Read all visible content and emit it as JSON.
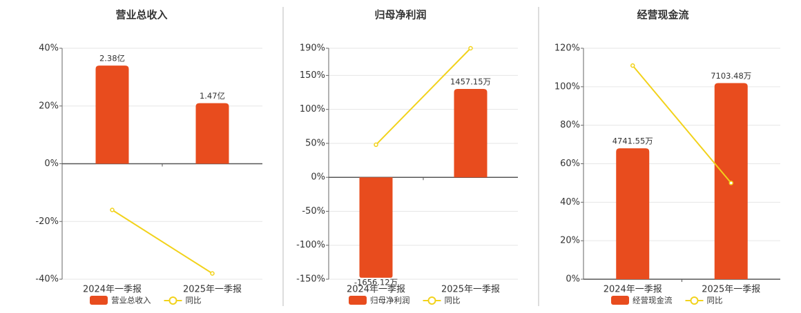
{
  "chart_data": [
    {
      "type": "bar",
      "title": "营业总收入",
      "categories": [
        "2024年一季报",
        "2025年一季报"
      ],
      "series": [
        {
          "name": "营业总收入",
          "type": "bar",
          "axis": "y2",
          "color": "#e84c1e",
          "values": [
            2.38,
            1.47
          ],
          "value_labels": [
            "2.38亿",
            "1.47亿"
          ]
        },
        {
          "name": "同比",
          "type": "line",
          "color": "#f2d21b",
          "values": [
            -16,
            -38
          ]
        }
      ],
      "ylim": [
        -40,
        40
      ],
      "y2lim": [
        -2.8,
        2.8
      ],
      "yticks": [
        {
          "value": 40,
          "label": "40%"
        },
        {
          "value": 20,
          "label": "20%"
        },
        {
          "value": 0,
          "label": "0%"
        },
        {
          "value": -20,
          "label": "-20%"
        },
        {
          "value": -40,
          "label": "-40%"
        }
      ],
      "grid": true
    },
    {
      "type": "bar",
      "title": "归母净利润",
      "categories": [
        "2024年一季报",
        "2025年一季报"
      ],
      "series": [
        {
          "name": "归母净利润",
          "type": "bar",
          "axis": "y2",
          "color": "#e84c1e",
          "values": [
            -1656.12,
            1457.15
          ],
          "value_labels": [
            "-1656.12万",
            "1457.15万"
          ]
        },
        {
          "name": "同比",
          "type": "line",
          "color": "#f2d21b",
          "values": [
            48,
            190
          ]
        }
      ],
      "ylim": [
        -150,
        190
      ],
      "y2lim": [
        -1680,
        2128
      ],
      "yticks": [
        {
          "value": 190,
          "label": "190%"
        },
        {
          "value": 150,
          "label": "150%"
        },
        {
          "value": 100,
          "label": "100%"
        },
        {
          "value": 50,
          "label": "50%"
        },
        {
          "value": 0,
          "label": "0%"
        },
        {
          "value": -50,
          "label": "-50%"
        },
        {
          "value": -100,
          "label": "-100%"
        },
        {
          "value": -150,
          "label": "-150%"
        }
      ],
      "grid": true
    },
    {
      "type": "bar",
      "title": "经营现金流",
      "categories": [
        "2024年一季报",
        "2025年一季报"
      ],
      "series": [
        {
          "name": "经营现金流",
          "type": "bar",
          "axis": "y2",
          "color": "#e84c1e",
          "values": [
            4741.55,
            7103.48
          ],
          "value_labels": [
            "4741.55万",
            "7103.48万"
          ]
        },
        {
          "name": "同比",
          "type": "line",
          "color": "#f2d21b",
          "values": [
            111,
            50
          ]
        }
      ],
      "ylim": [
        0,
        120
      ],
      "y2lim": [
        0,
        8364
      ],
      "yticks": [
        {
          "value": 120,
          "label": "120%"
        },
        {
          "value": 100,
          "label": "100%"
        },
        {
          "value": 80,
          "label": "80%"
        },
        {
          "value": 60,
          "label": "60%"
        },
        {
          "value": 40,
          "label": "40%"
        },
        {
          "value": 20,
          "label": "20%"
        },
        {
          "value": 0,
          "label": "0%"
        }
      ],
      "grid": true
    }
  ]
}
